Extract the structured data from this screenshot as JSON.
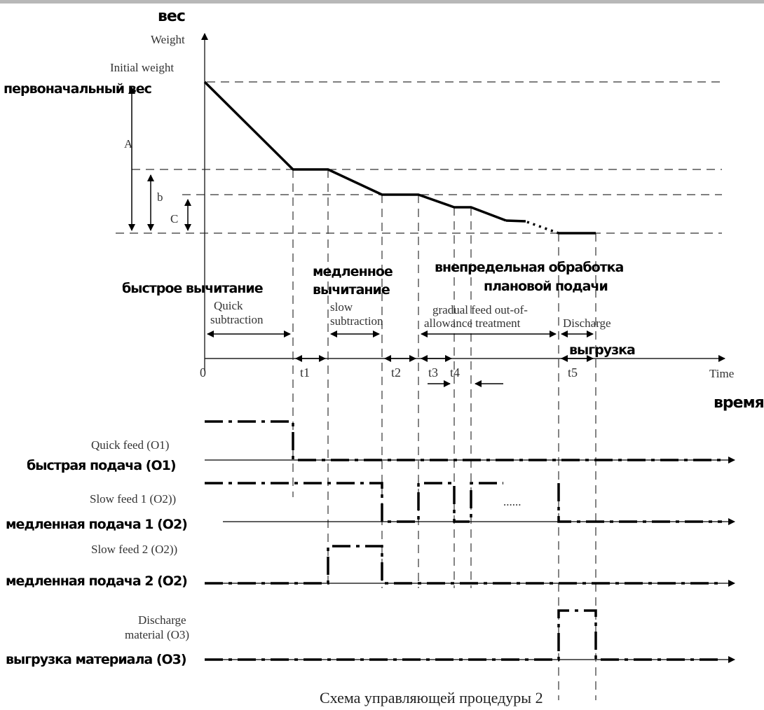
{
  "axes": {
    "y_ru": "вес",
    "y_en": "Weight",
    "x_en": "Time",
    "x_ru": "время",
    "origin": "0"
  },
  "initial_weight": {
    "en": "Initial weight",
    "ru": "первоначальный вес"
  },
  "dimensions": {
    "a": "A",
    "b": "b",
    "c": "C"
  },
  "phases": {
    "quick": {
      "ru": "быстрое вычитание",
      "en_line1": "Quick",
      "en_line2": "subtraction"
    },
    "slow": {
      "ru_line1": "медленное",
      "ru_line2": "вычитание",
      "en_line1": "slow",
      "en_line2": "subtraction"
    },
    "gradual": {
      "ru_line1": "внепредельная обработка",
      "ru_line2": "плановой подачи",
      "en_line1": "gradual feed out-of-",
      "en_line2": "allowance treatment"
    },
    "discharge": {
      "en": "Discharge",
      "ru": "выгрузка"
    }
  },
  "time_marks": [
    "t1",
    "t2",
    "t3",
    "t4",
    "t5"
  ],
  "signals": {
    "quick_feed": {
      "en": "Quick feed (O1)",
      "ru": "быстрая подача (O1)"
    },
    "slow_feed1": {
      "en": "Slow feed 1 (O2))",
      "ru": "медленная подача 1 (O2)"
    },
    "slow_feed2": {
      "en": "Slow feed 2 (O2))",
      "ru": "медленная подача 2 (O2)"
    },
    "discharge_material": {
      "en_line1": "Discharge",
      "en_line2": "material (O3)",
      "ru": "выгрузка материала (O3)"
    },
    "ellipsis": "......"
  },
  "caption": "Схема управляющей процедуры 2",
  "colors": {
    "line": "#000000",
    "grid": "#333333",
    "top_bar": "#b8b8b8"
  }
}
